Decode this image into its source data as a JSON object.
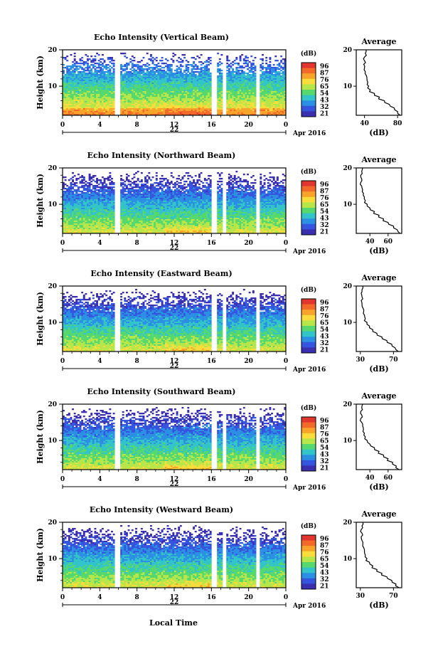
{
  "figure": {
    "xlabel": "Local Time",
    "date_label": "Apr 2016",
    "day_label": "22"
  },
  "colorbar": {
    "unit": "(dB)",
    "ticks": [
      "96",
      "87",
      "76",
      "65",
      "54",
      "43",
      "32",
      "21"
    ],
    "colors": [
      "#e0362f",
      "#f2692a",
      "#f8a42a",
      "#fadc3c",
      "#b7e64a",
      "#55d86e",
      "#32c4c8",
      "#2b8fe3",
      "#3655de",
      "#3a2fb0"
    ]
  },
  "chart_data": [
    {
      "type": "heatmap",
      "title": "Echo Intensity (Vertical Beam)",
      "ylabel": "Height (km)",
      "x_ticks": [
        "0",
        "4",
        "8",
        "12",
        "16",
        "20",
        "0"
      ],
      "y_ticks": [
        "20",
        "10"
      ],
      "xlim": [
        0,
        24
      ],
      "ylim": [
        2,
        20
      ],
      "data_gaps_hours": [
        [
          5.6,
          6.2
        ],
        [
          16.0,
          16.6
        ],
        [
          17.3,
          17.7
        ],
        [
          20.8,
          21.2
        ]
      ],
      "profile": {
        "title": "Average",
        "xlabel": "(dB)",
        "x_ticks": [
          "40",
          "80"
        ],
        "y_ticks": [
          "20",
          "10"
        ],
        "xlim": [
          30,
          85
        ],
        "ylim": [
          2,
          20
        ],
        "height_km": [
          2,
          3,
          4,
          5,
          6,
          7,
          8,
          9,
          10,
          11,
          12,
          13,
          14,
          15,
          16,
          17,
          18,
          19,
          20
        ],
        "db": [
          83,
          80,
          76,
          70,
          64,
          58,
          52,
          47,
          45,
          44,
          43,
          42,
          41,
          40,
          39,
          40,
          40,
          41,
          42
        ]
      }
    },
    {
      "type": "heatmap",
      "title": "Echo Intensity (Northward Beam)",
      "ylabel": "Height (km)",
      "x_ticks": [
        "0",
        "4",
        "8",
        "12",
        "16",
        "20",
        "0"
      ],
      "y_ticks": [
        "20",
        "10"
      ],
      "xlim": [
        0,
        24
      ],
      "ylim": [
        2,
        20
      ],
      "data_gaps_hours": [
        [
          5.6,
          6.2
        ],
        [
          16.0,
          16.6
        ],
        [
          17.3,
          17.7
        ],
        [
          20.8,
          21.2
        ]
      ],
      "profile": {
        "title": "Average",
        "xlabel": "(dB)",
        "x_ticks": [
          "40",
          "60"
        ],
        "y_ticks": [
          "20",
          "10"
        ],
        "xlim": [
          25,
          75
        ],
        "ylim": [
          2,
          20
        ],
        "height_km": [
          2,
          3,
          4,
          5,
          6,
          7,
          8,
          9,
          10,
          11,
          12,
          13,
          14,
          15,
          16,
          17,
          18,
          19,
          20
        ],
        "db": [
          73,
          70,
          66,
          60,
          55,
          50,
          45,
          40,
          37,
          35,
          34,
          33,
          32,
          31,
          30,
          31,
          30,
          31,
          32
        ]
      }
    },
    {
      "type": "heatmap",
      "title": "Echo Intensity (Eastward Beam)",
      "ylabel": "Height (km)",
      "x_ticks": [
        "0",
        "4",
        "8",
        "12",
        "16",
        "20",
        "0"
      ],
      "y_ticks": [
        "20",
        "10"
      ],
      "xlim": [
        0,
        24
      ],
      "ylim": [
        2,
        20
      ],
      "data_gaps_hours": [
        [
          5.6,
          6.2
        ],
        [
          16.0,
          16.6
        ],
        [
          17.3,
          17.7
        ],
        [
          20.8,
          21.2
        ]
      ],
      "profile": {
        "title": "Average",
        "xlabel": "(dB)",
        "x_ticks": [
          "30",
          "70"
        ],
        "y_ticks": [
          "20",
          "10"
        ],
        "xlim": [
          25,
          80
        ],
        "ylim": [
          2,
          20
        ],
        "height_km": [
          2,
          3,
          4,
          5,
          6,
          7,
          8,
          9,
          10,
          11,
          12,
          13,
          14,
          15,
          16,
          17,
          18,
          19,
          20
        ],
        "db": [
          76,
          72,
          68,
          62,
          56,
          50,
          45,
          41,
          38,
          36,
          35,
          34,
          33,
          32,
          31,
          32,
          31,
          32,
          33
        ]
      }
    },
    {
      "type": "heatmap",
      "title": "Echo Intensity (Southward Beam)",
      "ylabel": "Height (km)",
      "x_ticks": [
        "0",
        "4",
        "8",
        "12",
        "16",
        "20",
        "0"
      ],
      "y_ticks": [
        "20",
        "10"
      ],
      "xlim": [
        0,
        24
      ],
      "ylim": [
        2,
        20
      ],
      "data_gaps_hours": [
        [
          5.6,
          6.2
        ],
        [
          16.0,
          16.6
        ],
        [
          17.3,
          17.7
        ],
        [
          20.8,
          21.2
        ]
      ],
      "profile": {
        "title": "Average",
        "xlabel": "(dB)",
        "x_ticks": [
          "40",
          "60"
        ],
        "y_ticks": [
          "20",
          "10"
        ],
        "xlim": [
          25,
          75
        ],
        "ylim": [
          2,
          20
        ],
        "height_km": [
          2,
          3,
          4,
          5,
          6,
          7,
          8,
          9,
          10,
          11,
          12,
          13,
          14,
          15,
          16,
          17,
          18,
          19,
          20
        ],
        "db": [
          72,
          69,
          65,
          60,
          55,
          50,
          45,
          40,
          37,
          35,
          34,
          33,
          32,
          31,
          30,
          31,
          30,
          31,
          32
        ]
      }
    },
    {
      "type": "heatmap",
      "title": "Echo Intensity (Westward Beam)",
      "ylabel": "Height (km)",
      "x_ticks": [
        "0",
        "4",
        "8",
        "12",
        "16",
        "20",
        "0"
      ],
      "y_ticks": [
        "20",
        "10"
      ],
      "xlim": [
        0,
        24
      ],
      "ylim": [
        2,
        20
      ],
      "data_gaps_hours": [
        [
          5.6,
          6.2
        ],
        [
          16.0,
          16.6
        ],
        [
          17.3,
          17.7
        ],
        [
          20.8,
          21.2
        ]
      ],
      "profile": {
        "title": "Average",
        "xlabel": "(dB)",
        "x_ticks": [
          "30",
          "70"
        ],
        "y_ticks": [
          "20",
          "10"
        ],
        "xlim": [
          25,
          80
        ],
        "ylim": [
          2,
          20
        ],
        "height_km": [
          2,
          3,
          4,
          5,
          6,
          7,
          8,
          9,
          10,
          11,
          12,
          13,
          14,
          15,
          16,
          17,
          18,
          19,
          20
        ],
        "db": [
          77,
          73,
          68,
          62,
          56,
          50,
          45,
          41,
          38,
          36,
          35,
          34,
          33,
          32,
          31,
          32,
          31,
          32,
          33
        ]
      }
    }
  ]
}
